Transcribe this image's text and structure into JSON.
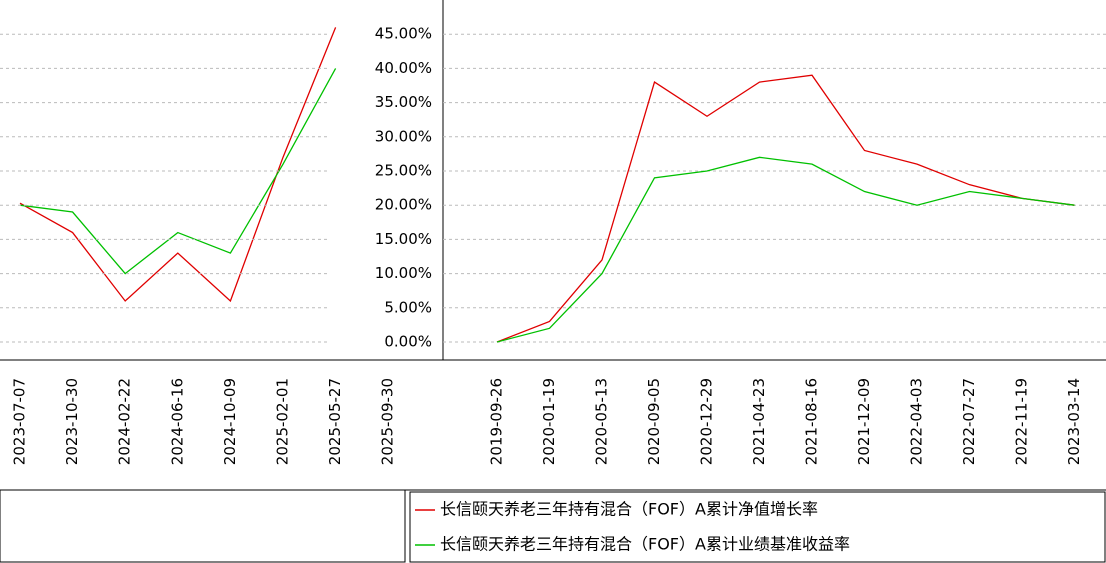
{
  "chart_data": [
    {
      "type": "line",
      "categories": [
        "2023-07-07",
        "2023-10-30",
        "2024-02-22",
        "2024-06-16",
        "2024-10-09",
        "2025-02-01",
        "2025-05-27",
        "2025-09-30"
      ],
      "series": [
        {
          "color": "#e00000",
          "values": [
            20.3,
            16,
            6,
            13,
            6,
            27,
            46,
            null
          ]
        },
        {
          "color": "#00c000",
          "values": [
            20,
            19,
            10,
            16,
            13,
            26,
            40,
            null
          ]
        }
      ],
      "ylim": [
        0,
        50
      ],
      "grid": true
    },
    {
      "type": "line",
      "categories": [
        "2019-09-26",
        "2020-01-19",
        "2020-05-13",
        "2020-09-05",
        "2020-12-29",
        "2021-04-23",
        "2021-08-16",
        "2021-12-09",
        "2022-04-03",
        "2022-07-27",
        "2022-11-19",
        "2023-03-14"
      ],
      "series": [
        {
          "name": "长信颐天养老三年持有混合（FOF）A累计净值增长率",
          "color": "#e00000",
          "values": [
            0,
            3,
            12,
            38,
            33,
            38,
            39,
            28,
            26,
            23,
            21,
            20
          ]
        },
        {
          "name": "长信颐天养老三年持有混合（FOF）A累计业绩基准收益率",
          "color": "#00c000",
          "values": [
            0,
            2,
            10,
            24,
            25,
            27,
            26,
            22,
            20,
            22,
            21,
            20
          ]
        }
      ],
      "ylim": [
        0,
        50
      ],
      "yticks": [
        {
          "value": 0,
          "label": "0.00%"
        },
        {
          "value": 5,
          "label": "5.00%"
        },
        {
          "value": 10,
          "label": "10.00%"
        },
        {
          "value": 15,
          "label": "15.00%"
        },
        {
          "value": 20,
          "label": "20.00%"
        },
        {
          "value": 25,
          "label": "25.00%"
        },
        {
          "value": 30,
          "label": "30.00%"
        },
        {
          "value": 35,
          "label": "35.00%"
        },
        {
          "value": 40,
          "label": "40.00%"
        },
        {
          "value": 45,
          "label": "45.00%"
        }
      ],
      "grid": true
    }
  ]
}
